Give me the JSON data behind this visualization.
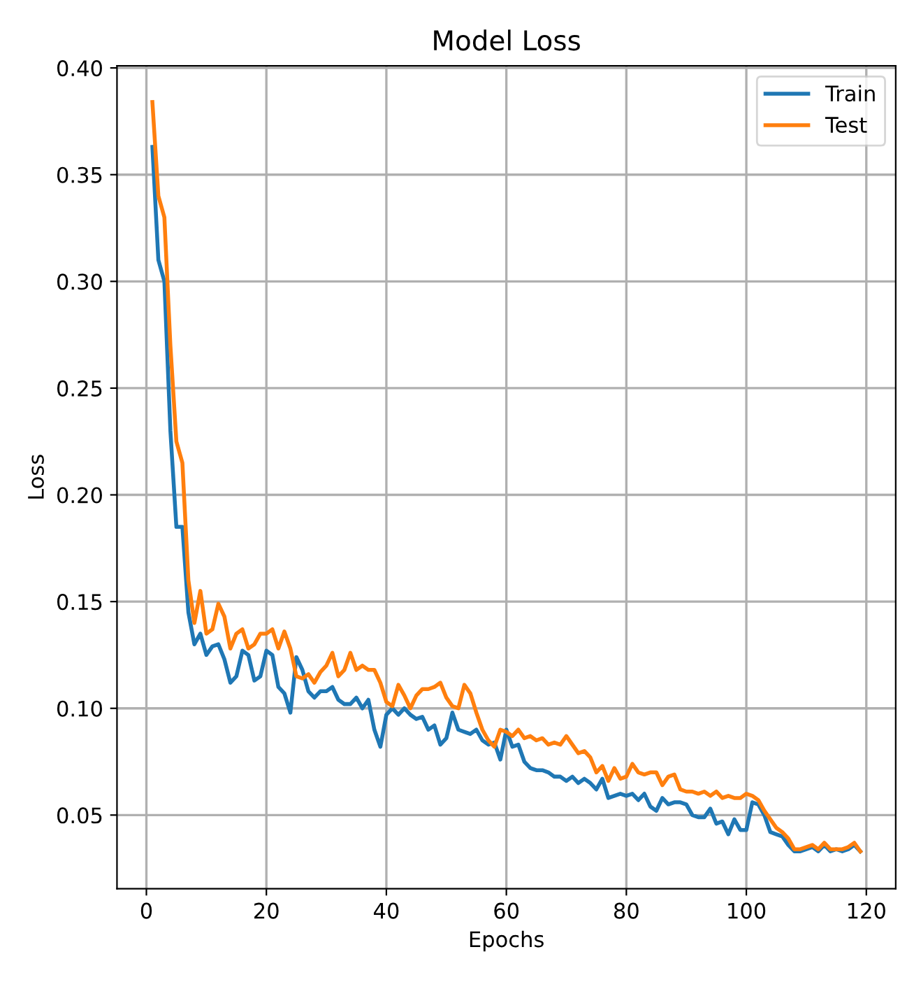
{
  "chart_data": {
    "type": "line",
    "title": "Model Loss",
    "xlabel": "Epochs",
    "ylabel": "Loss",
    "x": [
      1,
      2,
      3,
      4,
      5,
      6,
      7,
      8,
      9,
      10,
      11,
      12,
      13,
      14,
      15,
      16,
      17,
      18,
      19,
      20,
      21,
      22,
      23,
      24,
      25,
      26,
      27,
      28,
      29,
      30,
      31,
      32,
      33,
      34,
      35,
      36,
      37,
      38,
      39,
      40,
      41,
      42,
      43,
      44,
      45,
      46,
      47,
      48,
      49,
      50,
      51,
      52,
      53,
      54,
      55,
      56,
      57,
      58,
      59,
      60,
      61,
      62,
      63,
      64,
      65,
      66,
      67,
      68,
      69,
      70,
      71,
      72,
      73,
      74,
      75,
      76,
      77,
      78,
      79,
      80,
      81,
      82,
      83,
      84,
      85,
      86,
      87,
      88,
      89,
      90,
      91,
      92,
      93,
      94,
      95,
      96,
      97,
      98,
      99,
      100,
      101,
      102,
      103,
      104,
      105,
      106,
      107,
      108,
      109,
      110,
      111,
      112,
      113,
      114,
      115,
      116,
      117,
      118,
      119
    ],
    "series": [
      {
        "name": "Train",
        "color": "#1f77b4",
        "values": [
          0.363,
          0.31,
          0.3,
          0.23,
          0.185,
          0.185,
          0.145,
          0.13,
          0.135,
          0.125,
          0.129,
          0.13,
          0.123,
          0.112,
          0.115,
          0.127,
          0.125,
          0.113,
          0.115,
          0.127,
          0.125,
          0.11,
          0.107,
          0.098,
          0.124,
          0.118,
          0.108,
          0.105,
          0.108,
          0.108,
          0.11,
          0.104,
          0.102,
          0.102,
          0.105,
          0.1,
          0.104,
          0.09,
          0.082,
          0.097,
          0.1,
          0.097,
          0.1,
          0.097,
          0.095,
          0.096,
          0.09,
          0.092,
          0.083,
          0.086,
          0.098,
          0.09,
          0.089,
          0.088,
          0.09,
          0.085,
          0.083,
          0.084,
          0.076,
          0.09,
          0.082,
          0.083,
          0.075,
          0.072,
          0.071,
          0.071,
          0.07,
          0.068,
          0.068,
          0.066,
          0.068,
          0.065,
          0.067,
          0.065,
          0.062,
          0.067,
          0.058,
          0.059,
          0.06,
          0.059,
          0.06,
          0.057,
          0.06,
          0.054,
          0.052,
          0.058,
          0.055,
          0.056,
          0.056,
          0.055,
          0.05,
          0.049,
          0.049,
          0.053,
          0.046,
          0.047,
          0.041,
          0.048,
          0.043,
          0.043,
          0.056,
          0.055,
          0.05,
          0.042,
          0.041,
          0.04,
          0.036,
          0.033,
          0.033,
          0.034,
          0.035,
          0.033,
          0.036,
          0.033,
          0.034,
          0.033,
          0.034,
          0.036,
          0.033
        ]
      },
      {
        "name": "Test",
        "color": "#ff7f0e",
        "values": [
          0.384,
          0.34,
          0.33,
          0.27,
          0.225,
          0.215,
          0.16,
          0.14,
          0.155,
          0.135,
          0.137,
          0.149,
          0.143,
          0.128,
          0.135,
          0.137,
          0.128,
          0.13,
          0.135,
          0.135,
          0.137,
          0.128,
          0.136,
          0.128,
          0.115,
          0.114,
          0.116,
          0.112,
          0.117,
          0.12,
          0.126,
          0.115,
          0.118,
          0.126,
          0.118,
          0.12,
          0.118,
          0.118,
          0.112,
          0.103,
          0.101,
          0.111,
          0.106,
          0.1,
          0.106,
          0.109,
          0.109,
          0.11,
          0.112,
          0.105,
          0.101,
          0.1,
          0.111,
          0.107,
          0.098,
          0.09,
          0.085,
          0.082,
          0.09,
          0.089,
          0.087,
          0.09,
          0.086,
          0.087,
          0.085,
          0.086,
          0.083,
          0.084,
          0.083,
          0.087,
          0.083,
          0.079,
          0.08,
          0.077,
          0.07,
          0.073,
          0.066,
          0.072,
          0.067,
          0.068,
          0.074,
          0.07,
          0.069,
          0.07,
          0.07,
          0.064,
          0.068,
          0.069,
          0.062,
          0.061,
          0.061,
          0.06,
          0.061,
          0.059,
          0.061,
          0.058,
          0.059,
          0.058,
          0.058,
          0.06,
          0.059,
          0.057,
          0.052,
          0.048,
          0.044,
          0.042,
          0.039,
          0.034,
          0.034,
          0.035,
          0.036,
          0.034,
          0.037,
          0.034,
          0.034,
          0.034,
          0.035,
          0.037,
          0.033
        ]
      }
    ],
    "xlim": [
      -4.9,
      124.9
    ],
    "xticks": [
      0,
      20,
      40,
      60,
      80,
      100,
      120
    ],
    "ylim": [
      0.0155,
      0.401
    ],
    "yticks": [
      {
        "value": 0.05,
        "label": "0.05"
      },
      {
        "value": 0.1,
        "label": "0.10"
      },
      {
        "value": 0.15,
        "label": "0.15"
      },
      {
        "value": 0.2,
        "label": "0.20"
      },
      {
        "value": 0.25,
        "label": "0.25"
      },
      {
        "value": 0.3,
        "label": "0.30"
      },
      {
        "value": 0.35,
        "label": "0.35"
      },
      {
        "value": 0.4,
        "label": "0.40"
      }
    ],
    "grid": true,
    "legend": "top right",
    "marker": "none",
    "line_style": "solid"
  }
}
